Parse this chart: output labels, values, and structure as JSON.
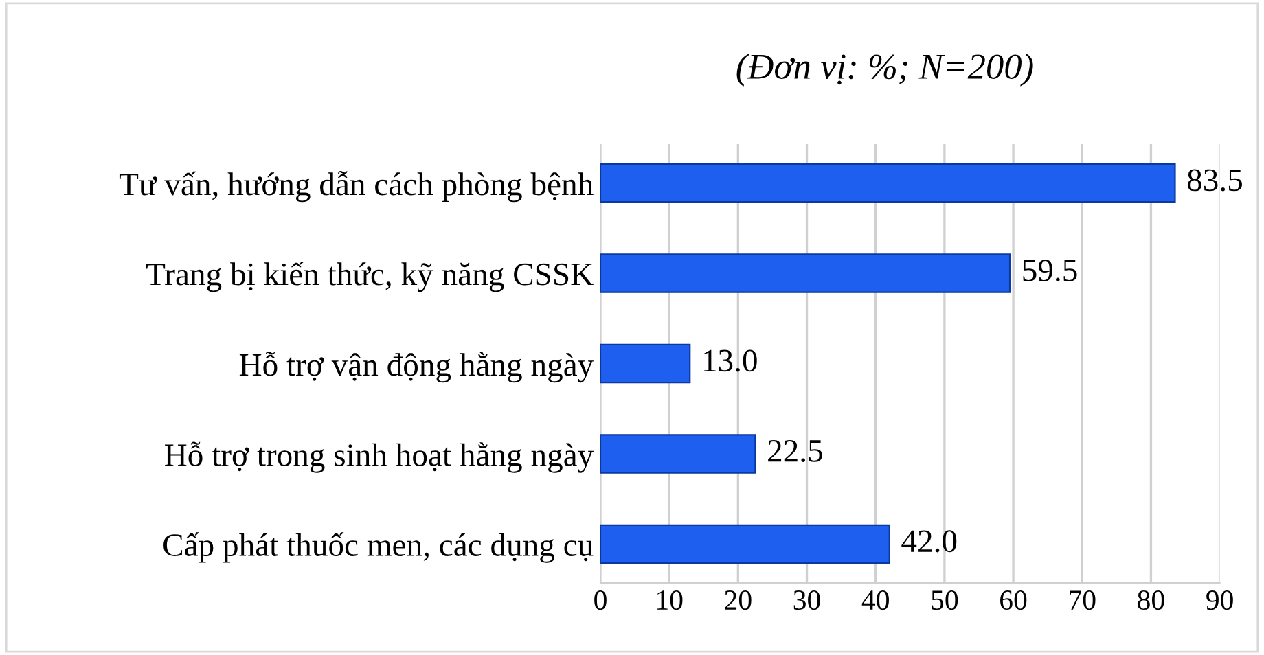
{
  "chart_data": {
    "type": "bar",
    "orientation": "horizontal",
    "subtitle": "(Đơn vị: %; N=200)",
    "categories": [
      "Tư vấn, hướng dẫn cách phòng bệnh",
      "Trang bị kiến thức, kỹ năng CSSK",
      "Hỗ trợ vận động hằng ngày",
      "Hỗ trợ trong sinh hoạt hằng ngày",
      "Cấp phát thuốc men, các dụng cụ"
    ],
    "values": [
      83.5,
      59.5,
      13.0,
      22.5,
      42.0
    ],
    "value_labels": [
      "83.5",
      "59.5",
      "13.0",
      "22.5",
      "42.0"
    ],
    "color": "#1f5ff0",
    "xlim": [
      0,
      90
    ],
    "xticks": [
      0,
      10,
      20,
      30,
      40,
      50,
      60,
      70,
      80,
      90
    ],
    "grid": "x"
  }
}
